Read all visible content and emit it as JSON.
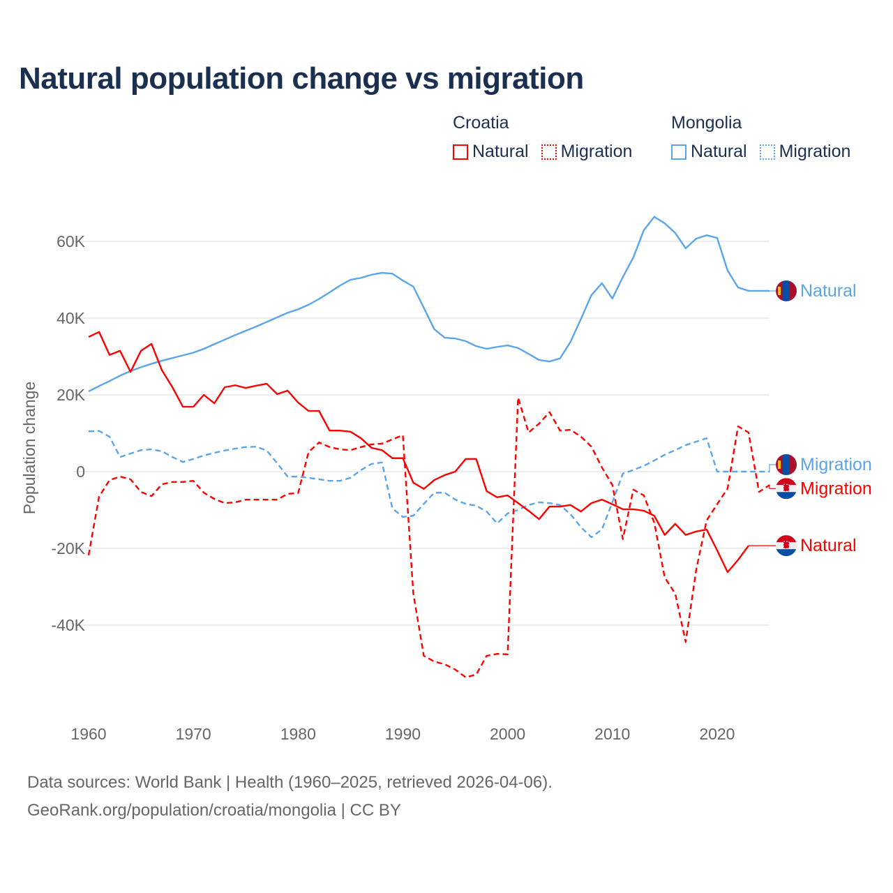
{
  "chart_data": {
    "type": "line",
    "title": "Natural population change vs migration",
    "ylabel": "Population change",
    "xlabel": "",
    "xlim": [
      1960,
      2025
    ],
    "ylim": [
      -60000,
      70000
    ],
    "grid": true,
    "x_ticks": [
      1960,
      1970,
      1980,
      1990,
      2000,
      2010,
      2020
    ],
    "x_tick_labels": [
      "1960",
      "1970",
      "1980",
      "1990",
      "2000",
      "2010",
      "2020"
    ],
    "y_ticks": [
      60000,
      40000,
      20000,
      0,
      -20000,
      -40000
    ],
    "y_tick_labels": [
      "60K",
      "40K",
      "20K",
      "0",
      "-20K",
      "-40K"
    ],
    "legend": {
      "placement": "top-right",
      "groups": [
        {
          "title": "Croatia",
          "items": [
            {
              "label": "Natural",
              "style": "solid",
              "color": "#ff0000"
            },
            {
              "label": "Migration",
              "style": "dotted",
              "color": "#ff0000"
            }
          ]
        },
        {
          "title": "Mongolia",
          "items": [
            {
              "label": "Natural",
              "style": "solid",
              "color": "#5aa5ea"
            },
            {
              "label": "Migration",
              "style": "dotted",
              "color": "#5aa5ea"
            }
          ]
        }
      ]
    },
    "series": [
      {
        "name": "Mongolia Natural",
        "end_label": "Natural",
        "country": "mongolia",
        "color": "#5aa5ea",
        "dash": false,
        "start_year": 1960,
        "values": [
          20.9,
          22.3,
          23.6,
          25,
          26.2,
          27.2,
          28.1,
          28.9,
          29.6,
          30.3,
          31,
          32,
          33.2,
          34.4,
          35.6,
          36.7,
          37.8,
          39,
          40.2,
          41.4,
          42.3,
          43.5,
          45,
          46.7,
          48.5,
          50,
          50.5,
          51.3,
          51.8,
          51.6,
          49.8,
          48.2,
          42.7,
          37.1,
          34.9,
          34.7,
          34,
          32.7,
          32,
          32.5,
          32.9,
          32.2,
          30.7,
          29.1,
          28.7,
          29.5,
          33.8,
          39.8,
          46,
          49.1,
          45.1,
          50.7,
          55.8,
          62.9,
          66.4,
          64.7,
          62.2,
          58.2,
          60.7,
          61.6,
          60.9,
          52.4,
          48,
          47.1,
          47.1,
          47.1
        ]
      },
      {
        "name": "Mongolia Migration",
        "end_label": "Migration",
        "country": "mongolia",
        "color": "#5aa5ea",
        "dash": true,
        "start_year": 1960,
        "values": [
          10.5,
          10.6,
          9.1,
          3.8,
          4.7,
          5.6,
          5.8,
          5.3,
          3.8,
          2.5,
          3.3,
          4.2,
          4.9,
          5.5,
          6,
          6.4,
          6.5,
          5.5,
          2.2,
          -1.3,
          -1.3,
          -1.6,
          -2,
          -2.4,
          -2.4,
          -1.6,
          0.4,
          2,
          2.4,
          -9.6,
          -11.8,
          -11.5,
          -8.4,
          -5.5,
          -5.5,
          -7.3,
          -8.4,
          -8.9,
          -10.4,
          -13.5,
          -10.9,
          -10,
          -8.7,
          -8,
          -8.2,
          -8.7,
          -11.1,
          -14.5,
          -17.1,
          -15.1,
          -8,
          -0.5,
          0.4,
          1.5,
          2.9,
          4.4,
          5.6,
          6.9,
          7.8,
          8.7,
          0,
          0,
          0,
          0,
          0,
          0
        ]
      },
      {
        "name": "Croatia Migration",
        "end_label": "Migration",
        "country": "croatia",
        "color": "#ff0000",
        "dash": true,
        "start_year": 1960,
        "values": [
          -21.8,
          -6.5,
          -2.2,
          -1.3,
          -2,
          -5.3,
          -6.4,
          -3.3,
          -2.7,
          -2.7,
          -2.4,
          -5.5,
          -7.1,
          -8.2,
          -8,
          -7.3,
          -7.3,
          -7.3,
          -7.3,
          -5.8,
          -5.6,
          5.1,
          7.6,
          6.4,
          5.8,
          5.6,
          6.4,
          7.1,
          7.3,
          8.4,
          9.5,
          -31.8,
          -48,
          -49.5,
          -50.2,
          -51.6,
          -53.6,
          -52.9,
          -48,
          -47.5,
          -47.6,
          19.3,
          10.2,
          12.5,
          15.5,
          10.7,
          10.9,
          9.1,
          6.5,
          1.1,
          -3.5,
          -17.6,
          -4.7,
          -6.2,
          -13.3,
          -27.6,
          -31.8,
          -44.4,
          -25.6,
          -12.7,
          -8.5,
          -4.4,
          11.8,
          10.2,
          -5.3,
          -3.5
        ]
      },
      {
        "name": "Croatia Natural",
        "end_label": "Natural",
        "country": "croatia",
        "color": "#ff0000",
        "dash": false,
        "start_year": 1960,
        "values": [
          35.1,
          36.4,
          30.4,
          31.5,
          26,
          31.5,
          33.3,
          26.4,
          22,
          16.9,
          16.9,
          20,
          17.8,
          22,
          22.5,
          21.8,
          22.4,
          22.9,
          20.2,
          21.1,
          18,
          15.8,
          15.8,
          10.7,
          10.7,
          10.4,
          8.7,
          6.2,
          5.6,
          3.5,
          3.5,
          -2.9,
          -4.5,
          -2.2,
          -0.9,
          0,
          3.3,
          3.3,
          -5.1,
          -6.7,
          -6.2,
          -8.2,
          -10.2,
          -12.4,
          -9.1,
          -9.1,
          -8.7,
          -10.4,
          -8.2,
          -7.3,
          -8.5,
          -9.8,
          -9.8,
          -10.2,
          -11.5,
          -16.5,
          -13.6,
          -16.5,
          -15.6,
          -15.1,
          -20.5,
          -26.2,
          -23,
          -19.3
        ]
      }
    ],
    "value_unit": "thousands"
  },
  "footer": {
    "line1": "Data sources: World Bank | Health (1960–2025, retrieved 2026-04-06).",
    "line2": "GeoRank.org/population/croatia/mongolia | CC BY"
  },
  "colors": {
    "croatia": "#ff0000",
    "mongolia": "#5aa5ea",
    "title": "#1b3050",
    "grid": "#e6e6e6",
    "axis_text": "#666666"
  }
}
